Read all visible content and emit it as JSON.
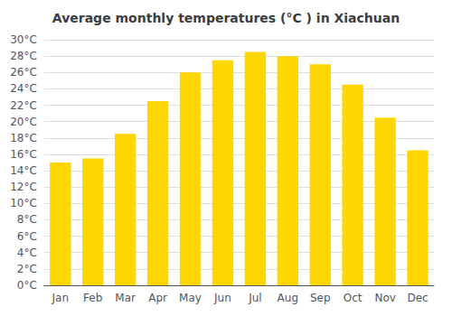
{
  "chart_data": {
    "type": "bar",
    "title": "Average monthly temperatures (°C ) in Xiachuan",
    "categories": [
      "Jan",
      "Feb",
      "Mar",
      "Apr",
      "May",
      "Jun",
      "Jul",
      "Aug",
      "Sep",
      "Oct",
      "Nov",
      "Dec"
    ],
    "values": [
      15.0,
      15.5,
      18.5,
      22.5,
      26.0,
      27.5,
      28.5,
      28.0,
      27.0,
      24.5,
      20.5,
      16.5
    ],
    "color": "#FFD700",
    "ylim": [
      0,
      30
    ],
    "yticks": [
      {
        "value": 0,
        "label": "0°C"
      },
      {
        "value": 2,
        "label": "2°C"
      },
      {
        "value": 4,
        "label": "4°C"
      },
      {
        "value": 6,
        "label": "6°C"
      },
      {
        "value": 8,
        "label": "8°C"
      },
      {
        "value": 10,
        "label": "10°C"
      },
      {
        "value": 12,
        "label": "12°C"
      },
      {
        "value": 14,
        "label": "14°C"
      },
      {
        "value": 16,
        "label": "16°C"
      },
      {
        "value": 18,
        "label": "18°C"
      },
      {
        "value": 20,
        "label": "20°C"
      },
      {
        "value": 22,
        "label": "22°C"
      },
      {
        "value": 24,
        "label": "24°C"
      },
      {
        "value": 26,
        "label": "26°C"
      },
      {
        "value": 28,
        "label": "28°C"
      },
      {
        "value": 30,
        "label": "30°C"
      }
    ],
    "grid": true
  }
}
